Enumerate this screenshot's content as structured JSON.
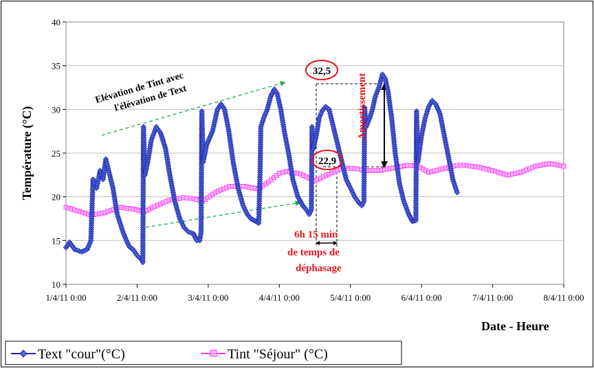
{
  "chart_data": {
    "type": "line",
    "ylabel": "Température (°C)",
    "xlabel": "Date - Heure",
    "ylim": [
      10,
      40
    ],
    "yticks": [
      "10",
      "15",
      "20",
      "25",
      "30",
      "35",
      "40"
    ],
    "xlim": [
      0,
      7
    ],
    "xticks": [
      "1/4/11 0:00",
      "2/4/11 0:00",
      "3/4/11 0:00",
      "4/4/11 0:00",
      "5/4/11 0:00",
      "6/4/11 0:00",
      "7/4/11 0:00",
      "8/4/11 0:00"
    ],
    "grid": "horizontal",
    "legend_position": "bottom-left",
    "colors": {
      "text": "#1f1fa8",
      "tint": "#ff33ff",
      "annotation_red": "#e8161c",
      "arrow_green": "#1aaa4a"
    },
    "series": [
      {
        "name": "Text \"cour\"(°C)",
        "color": "#1f1fa8",
        "marker": "diamond",
        "points": [
          [
            0.0,
            14.2
          ],
          [
            0.05,
            14.8
          ],
          [
            0.12,
            14.0
          ],
          [
            0.22,
            13.7
          ],
          [
            0.3,
            14.0
          ],
          [
            0.35,
            15.0
          ],
          [
            0.38,
            22.0
          ],
          [
            0.43,
            21.0
          ],
          [
            0.48,
            23.0
          ],
          [
            0.52,
            22.0
          ],
          [
            0.56,
            24.3
          ],
          [
            0.6,
            23.0
          ],
          [
            0.66,
            21.0
          ],
          [
            0.72,
            18.0
          ],
          [
            0.8,
            16.0
          ],
          [
            0.86,
            14.8
          ],
          [
            0.89,
            14.3
          ],
          [
            0.94,
            14.0
          ],
          [
            1.0,
            13.3
          ],
          [
            1.06,
            12.8
          ],
          [
            1.08,
            12.5
          ],
          [
            1.09,
            28.0
          ],
          [
            1.11,
            22.5
          ],
          [
            1.15,
            24.0
          ],
          [
            1.2,
            26.5
          ],
          [
            1.27,
            28.0
          ],
          [
            1.33,
            27.3
          ],
          [
            1.4,
            25.5
          ],
          [
            1.46,
            22.5
          ],
          [
            1.53,
            19.5
          ],
          [
            1.6,
            17.5
          ],
          [
            1.66,
            16.5
          ],
          [
            1.72,
            16.0
          ],
          [
            1.79,
            15.8
          ],
          [
            1.84,
            15.0
          ],
          [
            1.88,
            15.0
          ],
          [
            1.9,
            16.0
          ],
          [
            1.91,
            29.8
          ],
          [
            1.93,
            24.0
          ],
          [
            1.98,
            26.0
          ],
          [
            2.06,
            27.5
          ],
          [
            2.13,
            30.0
          ],
          [
            2.18,
            30.6
          ],
          [
            2.23,
            30.0
          ],
          [
            2.29,
            27.5
          ],
          [
            2.35,
            24.0
          ],
          [
            2.42,
            21.0
          ],
          [
            2.49,
            19.0
          ],
          [
            2.55,
            18.0
          ],
          [
            2.6,
            17.5
          ],
          [
            2.67,
            17.2
          ],
          [
            2.71,
            17.0
          ],
          [
            2.73,
            23.0
          ],
          [
            2.74,
            28.0
          ],
          [
            2.78,
            29.0
          ],
          [
            2.83,
            30.0
          ],
          [
            2.88,
            31.5
          ],
          [
            2.93,
            32.3
          ],
          [
            2.97,
            31.8
          ],
          [
            3.02,
            30.0
          ],
          [
            3.07,
            27.5
          ],
          [
            3.13,
            25.0
          ],
          [
            3.19,
            22.0
          ],
          [
            3.26,
            20.0
          ],
          [
            3.33,
            19.0
          ],
          [
            3.38,
            18.5
          ],
          [
            3.42,
            18.0
          ],
          [
            3.45,
            18.5
          ],
          [
            3.46,
            28.0
          ],
          [
            3.48,
            25.5
          ],
          [
            3.52,
            27.0
          ],
          [
            3.56,
            29.0
          ],
          [
            3.6,
            29.8
          ],
          [
            3.65,
            30.3
          ],
          [
            3.7,
            30.0
          ],
          [
            3.76,
            28.0
          ],
          [
            3.82,
            26.0
          ],
          [
            3.88,
            24.0
          ],
          [
            3.94,
            22.0
          ],
          [
            4.0,
            21.0
          ],
          [
            4.06,
            20.0
          ],
          [
            4.12,
            19.3
          ],
          [
            4.16,
            19.0
          ],
          [
            4.19,
            19.5
          ],
          [
            4.2,
            30.2
          ],
          [
            4.22,
            28.0
          ],
          [
            4.27,
            29.0
          ],
          [
            4.31,
            30.0
          ],
          [
            4.35,
            31.5
          ],
          [
            4.4,
            32.5
          ],
          [
            4.45,
            34.0
          ],
          [
            4.49,
            33.5
          ],
          [
            4.53,
            32.0
          ],
          [
            4.58,
            29.0
          ],
          [
            4.63,
            25.0
          ],
          [
            4.69,
            21.5
          ],
          [
            4.75,
            19.5
          ],
          [
            4.82,
            18.0
          ],
          [
            4.87,
            17.2
          ],
          [
            4.92,
            17.3
          ],
          [
            4.93,
            29.8
          ],
          [
            4.95,
            24.0
          ],
          [
            5.0,
            27.0
          ],
          [
            5.05,
            29.0
          ],
          [
            5.1,
            30.3
          ],
          [
            5.15,
            31.0
          ],
          [
            5.2,
            30.6
          ],
          [
            5.26,
            29.5
          ],
          [
            5.32,
            27.0
          ],
          [
            5.38,
            24.5
          ],
          [
            5.44,
            22.0
          ],
          [
            5.5,
            20.5
          ]
        ]
      },
      {
        "name": "Tint \"Séjour\" (°C)",
        "color": "#ff33ff",
        "marker": "square",
        "points": [
          [
            0.0,
            18.8
          ],
          [
            0.2,
            18.3
          ],
          [
            0.35,
            17.9
          ],
          [
            0.55,
            18.2
          ],
          [
            0.75,
            18.8
          ],
          [
            0.95,
            18.6
          ],
          [
            1.1,
            18.3
          ],
          [
            1.25,
            18.9
          ],
          [
            1.45,
            19.6
          ],
          [
            1.65,
            19.9
          ],
          [
            1.8,
            19.8
          ],
          [
            1.92,
            19.5
          ],
          [
            2.1,
            20.5
          ],
          [
            2.3,
            21.2
          ],
          [
            2.5,
            21.2
          ],
          [
            2.7,
            20.9
          ],
          [
            2.85,
            21.7
          ],
          [
            3.0,
            22.7
          ],
          [
            3.1,
            22.9
          ],
          [
            3.3,
            22.6
          ],
          [
            3.5,
            21.8
          ],
          [
            3.7,
            22.6
          ],
          [
            3.9,
            23.3
          ],
          [
            4.1,
            23.2
          ],
          [
            4.2,
            23.0
          ],
          [
            4.4,
            23.0
          ],
          [
            4.6,
            23.3
          ],
          [
            4.8,
            23.6
          ],
          [
            4.95,
            23.5
          ],
          [
            5.1,
            22.8
          ],
          [
            5.3,
            23.2
          ],
          [
            5.5,
            23.6
          ],
          [
            5.6,
            23.6
          ],
          [
            5.8,
            23.4
          ],
          [
            6.0,
            23.0
          ],
          [
            6.2,
            22.5
          ],
          [
            6.4,
            22.8
          ],
          [
            6.6,
            23.5
          ],
          [
            6.8,
            23.8
          ],
          [
            7.0,
            23.5
          ]
        ]
      }
    ],
    "annotations": {
      "rise_text_line1": "Elévation de Tint avec",
      "rise_text_line2": "l'élévation de Text",
      "peak_value": "32,5",
      "low_value": "22,9",
      "amortissement": "Amortissement",
      "shift_line1": "6h 15 min",
      "shift_line2": "de temps de",
      "shift_line3": "déphasage"
    }
  }
}
